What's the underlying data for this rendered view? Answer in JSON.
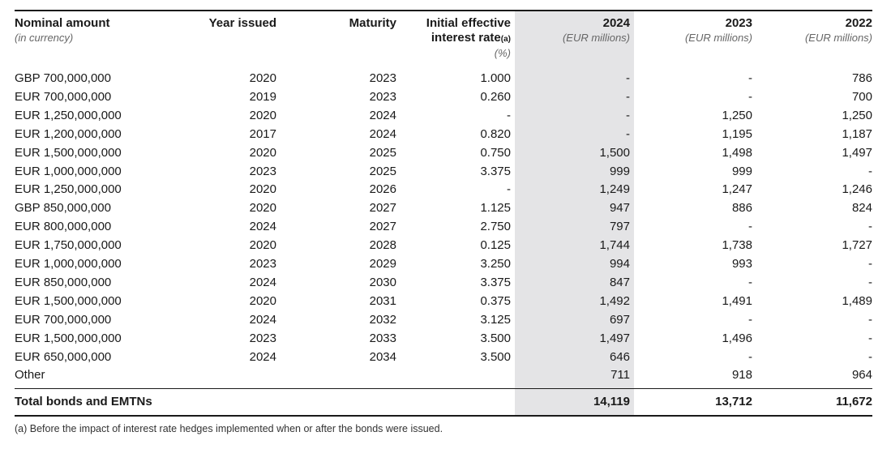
{
  "headers": {
    "nominal": "Nominal amount",
    "nominal_sub": "(in currency)",
    "year_issued": "Year issued",
    "maturity": "Maturity",
    "rate_line1": "Initial effective",
    "rate_line2": "interest rate",
    "rate_note": "(a)",
    "rate_sub": "(%)",
    "y2024": "2024",
    "y2024_sub": "(EUR millions)",
    "y2023": "2023",
    "y2023_sub": "(EUR millions)",
    "y2022": "2022",
    "y2022_sub": "(EUR millions)"
  },
  "rows": [
    {
      "nominal": "GBP 700,000,000",
      "year": "2020",
      "maturity": "2023",
      "rate": "1.000",
      "v2024": "-",
      "v2023": "-",
      "v2022": "786"
    },
    {
      "nominal": "EUR 700,000,000",
      "year": "2019",
      "maturity": "2023",
      "rate": "0.260",
      "v2024": "-",
      "v2023": "-",
      "v2022": "700"
    },
    {
      "nominal": "EUR 1,250,000,000",
      "year": "2020",
      "maturity": "2024",
      "rate": "-",
      "v2024": "-",
      "v2023": "1,250",
      "v2022": "1,250"
    },
    {
      "nominal": "EUR 1,200,000,000",
      "year": "2017",
      "maturity": "2024",
      "rate": "0.820",
      "v2024": "-",
      "v2023": "1,195",
      "v2022": "1,187"
    },
    {
      "nominal": "EUR 1,500,000,000",
      "year": "2020",
      "maturity": "2025",
      "rate": "0.750",
      "v2024": "1,500",
      "v2023": "1,498",
      "v2022": "1,497"
    },
    {
      "nominal": "EUR 1,000,000,000",
      "year": "2023",
      "maturity": "2025",
      "rate": "3.375",
      "v2024": "999",
      "v2023": "999",
      "v2022": "-"
    },
    {
      "nominal": "EUR 1,250,000,000",
      "year": "2020",
      "maturity": "2026",
      "rate": "-",
      "v2024": "1,249",
      "v2023": "1,247",
      "v2022": "1,246"
    },
    {
      "nominal": "GBP 850,000,000",
      "year": "2020",
      "maturity": "2027",
      "rate": "1.125",
      "v2024": "947",
      "v2023": "886",
      "v2022": "824"
    },
    {
      "nominal": "EUR 800,000,000",
      "year": "2024",
      "maturity": "2027",
      "rate": "2.750",
      "v2024": "797",
      "v2023": "-",
      "v2022": "-"
    },
    {
      "nominal": "EUR 1,750,000,000",
      "year": "2020",
      "maturity": "2028",
      "rate": "0.125",
      "v2024": "1,744",
      "v2023": "1,738",
      "v2022": "1,727"
    },
    {
      "nominal": "EUR 1,000,000,000",
      "year": "2023",
      "maturity": "2029",
      "rate": "3.250",
      "v2024": "994",
      "v2023": "993",
      "v2022": "-"
    },
    {
      "nominal": "EUR 850,000,000",
      "year": "2024",
      "maturity": "2030",
      "rate": "3.375",
      "v2024": "847",
      "v2023": "-",
      "v2022": "-"
    },
    {
      "nominal": "EUR 1,500,000,000",
      "year": "2020",
      "maturity": "2031",
      "rate": "0.375",
      "v2024": "1,492",
      "v2023": "1,491",
      "v2022": "1,489"
    },
    {
      "nominal": "EUR 700,000,000",
      "year": "2024",
      "maturity": "2032",
      "rate": "3.125",
      "v2024": "697",
      "v2023": "-",
      "v2022": "-"
    },
    {
      "nominal": "EUR 1,500,000,000",
      "year": "2023",
      "maturity": "2033",
      "rate": "3.500",
      "v2024": "1,497",
      "v2023": "1,496",
      "v2022": "-"
    },
    {
      "nominal": "EUR 650,000,000",
      "year": "2024",
      "maturity": "2034",
      "rate": "3.500",
      "v2024": "646",
      "v2023": "-",
      "v2022": "-"
    },
    {
      "nominal": "Other",
      "year": "",
      "maturity": "",
      "rate": "",
      "v2024": "711",
      "v2023": "918",
      "v2022": "964"
    }
  ],
  "total": {
    "label": "Total bonds and EMTNs",
    "v2024": "14,119",
    "v2023": "13,712",
    "v2022": "11,672"
  },
  "footnote": "(a) Before the impact of interest rate hedges implemented when or after the bonds were issued."
}
